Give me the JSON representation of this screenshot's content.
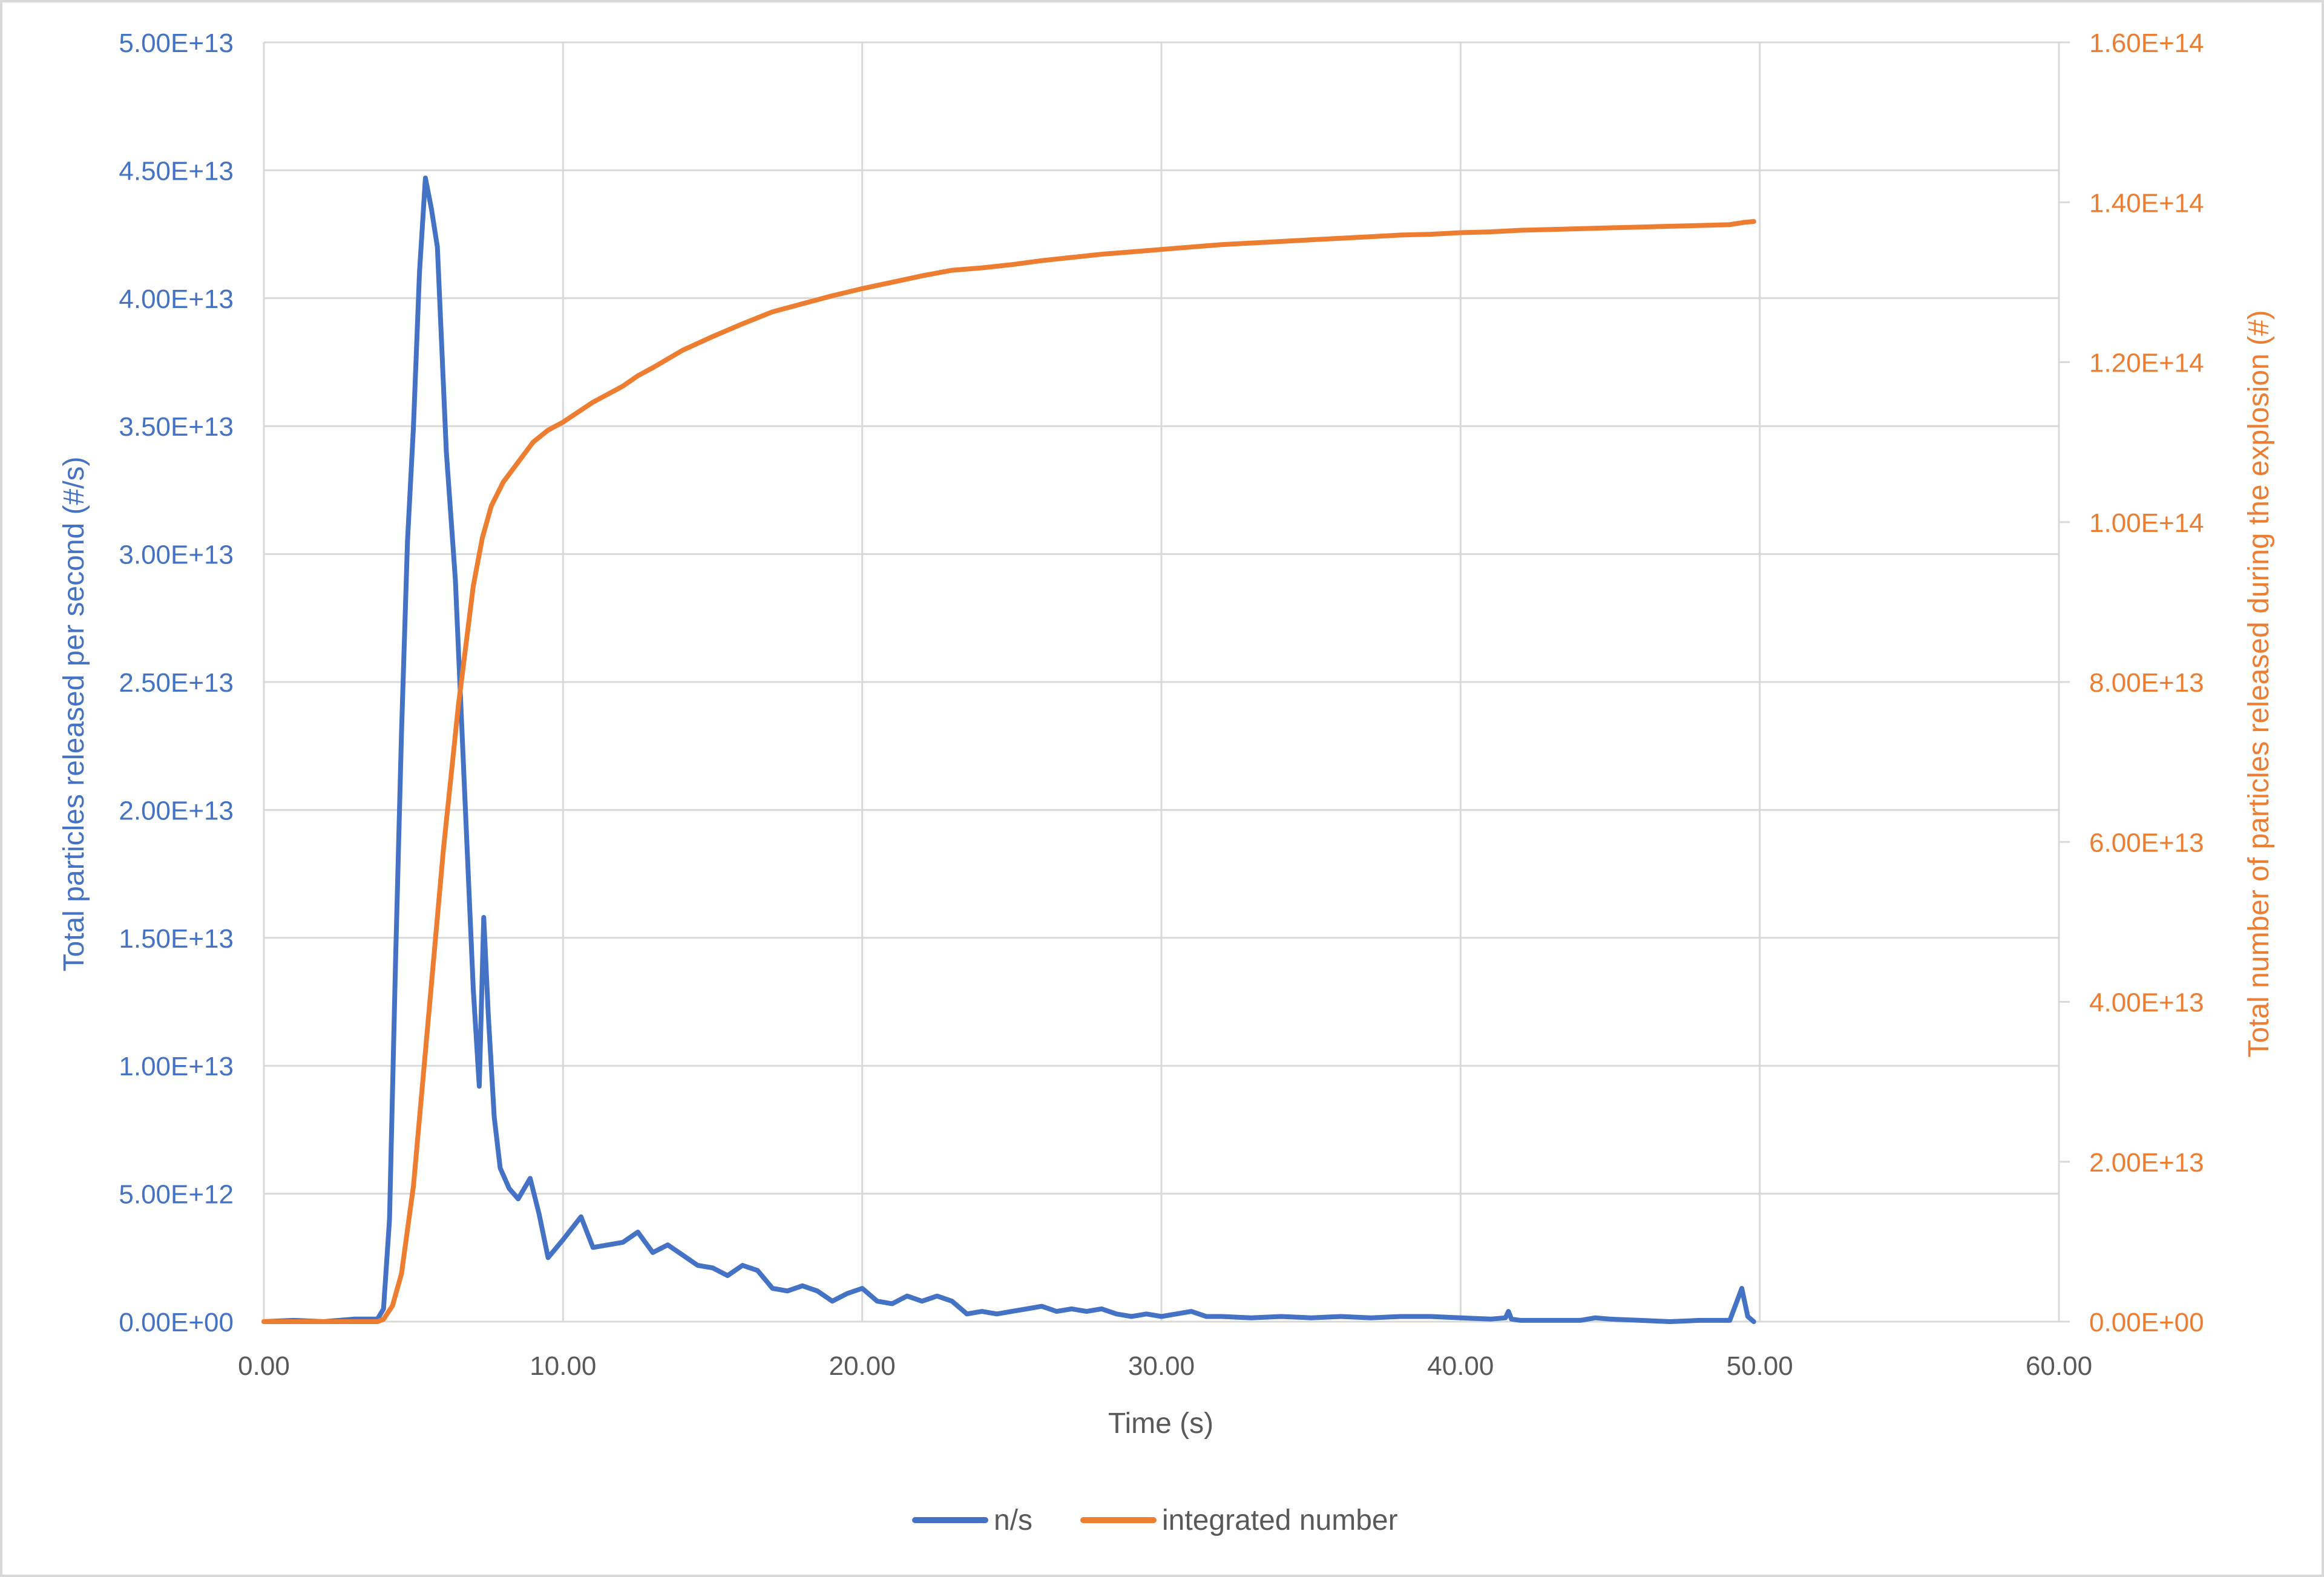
{
  "colors": {
    "left_series": "#4472C4",
    "right_series": "#ED7D31",
    "axis_text": "#595959",
    "grid": "#D9D9D9",
    "frame": "#D9D9D9"
  },
  "chart_data": {
    "type": "line",
    "title": "",
    "grid": true,
    "legend_position": "bottom",
    "x_axis": {
      "label": "Time (s)",
      "min": 0,
      "max": 60,
      "step": 10,
      "ticks": [
        "0.00",
        "10.00",
        "20.00",
        "30.00",
        "40.00",
        "50.00",
        "60.00"
      ]
    },
    "y_axis_left": {
      "label": "Total particles released per second (#/s)",
      "min": 0,
      "max": 50000000000000.0,
      "step": 5000000000000.0,
      "ticks": [
        "0.00E+00",
        "5.00E+12",
        "1.00E+13",
        "1.50E+13",
        "2.00E+13",
        "2.50E+13",
        "3.00E+13",
        "3.50E+13",
        "4.00E+13",
        "4.50E+13",
        "5.00E+13"
      ]
    },
    "y_axis_right": {
      "label": "Total number of particles released during the explosion (#)",
      "min": 0,
      "max": 160000000000000.0,
      "step": 20000000000000.0,
      "ticks": [
        "0.00E+00",
        "2.00E+13",
        "4.00E+13",
        "6.00E+13",
        "8.00E+13",
        "1.00E+14",
        "1.20E+14",
        "1.40E+14",
        "1.60E+14"
      ]
    },
    "series": [
      {
        "name": "n/s",
        "axis": "left",
        "points": [
          [
            0,
            0
          ],
          [
            1,
            50000000000.0
          ],
          [
            2,
            0
          ],
          [
            3,
            100000000000.0
          ],
          [
            3.8,
            100000000000.0
          ],
          [
            4.0,
            500000000000.0
          ],
          [
            4.2,
            4000000000000.0
          ],
          [
            4.4,
            14000000000000.0
          ],
          [
            4.6,
            23000000000000.0
          ],
          [
            4.8,
            30500000000000.0
          ],
          [
            5.0,
            35000000000000.0
          ],
          [
            5.2,
            41000000000000.0
          ],
          [
            5.4,
            44700000000000.0
          ],
          [
            5.6,
            43500000000000.0
          ],
          [
            5.8,
            42000000000000.0
          ],
          [
            6.1,
            34000000000000.0
          ],
          [
            6.4,
            29000000000000.0
          ],
          [
            6.7,
            21000000000000.0
          ],
          [
            7.0,
            13000000000000.0
          ],
          [
            7.2,
            9200000000000.0
          ],
          [
            7.35,
            15800000000000.0
          ],
          [
            7.5,
            12000000000000.0
          ],
          [
            7.7,
            8000000000000.0
          ],
          [
            7.9,
            6000000000000.0
          ],
          [
            8.2,
            5200000000000.0
          ],
          [
            8.5,
            4800000000000.0
          ],
          [
            8.9,
            5600000000000.0
          ],
          [
            9.2,
            4200000000000.0
          ],
          [
            9.5,
            2500000000000.0
          ],
          [
            10.0,
            3200000000000.0
          ],
          [
            10.6,
            4100000000000.0
          ],
          [
            11.0,
            2900000000000.0
          ],
          [
            11.5,
            3000000000000.0
          ],
          [
            12.0,
            3100000000000.0
          ],
          [
            12.5,
            3500000000000.0
          ],
          [
            13.0,
            2700000000000.0
          ],
          [
            13.5,
            3000000000000.0
          ],
          [
            14.0,
            2600000000000.0
          ],
          [
            14.5,
            2200000000000.0
          ],
          [
            15.0,
            2100000000000.0
          ],
          [
            15.5,
            1800000000000.0
          ],
          [
            16.0,
            2200000000000.0
          ],
          [
            16.5,
            2000000000000.0
          ],
          [
            17.0,
            1300000000000.0
          ],
          [
            17.5,
            1200000000000.0
          ],
          [
            18.0,
            1400000000000.0
          ],
          [
            18.5,
            1200000000000.0
          ],
          [
            19.0,
            800000000000.0
          ],
          [
            19.5,
            1100000000000.0
          ],
          [
            20.0,
            1300000000000.0
          ],
          [
            20.5,
            800000000000.0
          ],
          [
            21.0,
            700000000000.0
          ],
          [
            21.5,
            1000000000000.0
          ],
          [
            22.0,
            800000000000.0
          ],
          [
            22.5,
            1000000000000.0
          ],
          [
            23.0,
            800000000000.0
          ],
          [
            23.5,
            300000000000.0
          ],
          [
            24.0,
            400000000000.0
          ],
          [
            24.5,
            300000000000.0
          ],
          [
            25.0,
            400000000000.0
          ],
          [
            25.5,
            500000000000.0
          ],
          [
            26.0,
            600000000000.0
          ],
          [
            26.5,
            400000000000.0
          ],
          [
            27.0,
            500000000000.0
          ],
          [
            27.5,
            400000000000.0
          ],
          [
            28.0,
            500000000000.0
          ],
          [
            28.5,
            300000000000.0
          ],
          [
            29.0,
            200000000000.0
          ],
          [
            29.5,
            300000000000.0
          ],
          [
            30.0,
            200000000000.0
          ],
          [
            30.5,
            300000000000.0
          ],
          [
            31.0,
            400000000000.0
          ],
          [
            31.5,
            200000000000.0
          ],
          [
            32.0,
            200000000000.0
          ],
          [
            33.0,
            150000000000.0
          ],
          [
            34.0,
            200000000000.0
          ],
          [
            35.0,
            150000000000.0
          ],
          [
            36.0,
            200000000000.0
          ],
          [
            37.0,
            150000000000.0
          ],
          [
            38.0,
            200000000000.0
          ],
          [
            39.0,
            200000000000.0
          ],
          [
            40.0,
            150000000000.0
          ],
          [
            41.0,
            100000000000.0
          ],
          [
            41.5,
            150000000000.0
          ],
          [
            41.6,
            400000000000.0
          ],
          [
            41.7,
            100000000000.0
          ],
          [
            42.0,
            50000000000.0
          ],
          [
            43.0,
            50000000000.0
          ],
          [
            44.0,
            50000000000.0
          ],
          [
            44.5,
            150000000000.0
          ],
          [
            45.0,
            100000000000.0
          ],
          [
            46.0,
            50000000000.0
          ],
          [
            47.0,
            0
          ],
          [
            48.0,
            50000000000.0
          ],
          [
            49.0,
            50000000000.0
          ],
          [
            49.4,
            1300000000000.0
          ],
          [
            49.6,
            200000000000.0
          ],
          [
            49.8,
            0
          ]
        ]
      },
      {
        "name": "integrated number",
        "axis": "right",
        "points": [
          [
            0,
            0
          ],
          [
            3.8,
            0
          ],
          [
            4.0,
            300000000000.0
          ],
          [
            4.3,
            2000000000000.0
          ],
          [
            4.6,
            6000000000000.0
          ],
          [
            5.0,
            17000000000000.0
          ],
          [
            5.5,
            38000000000000.0
          ],
          [
            6.0,
            59000000000000.0
          ],
          [
            6.5,
            77000000000000.0
          ],
          [
            7.0,
            92000000000000.0
          ],
          [
            7.3,
            98000000000000.0
          ],
          [
            7.6,
            102000000000000.0
          ],
          [
            8.0,
            105000000000000.0
          ],
          [
            8.5,
            107500000000000.0
          ],
          [
            9.0,
            110000000000000.0
          ],
          [
            9.5,
            111500000000000.0
          ],
          [
            10.0,
            112500000000000.0
          ],
          [
            11.0,
            115000000000000.0
          ],
          [
            12.0,
            117000000000000.0
          ],
          [
            12.5,
            118300000000000.0
          ],
          [
            13.0,
            119300000000000.0
          ],
          [
            14.0,
            121500000000000.0
          ],
          [
            15.0,
            123200000000000.0
          ],
          [
            16.0,
            124800000000000.0
          ],
          [
            17.0,
            126300000000000.0
          ],
          [
            18.0,
            127300000000000.0
          ],
          [
            19.0,
            128300000000000.0
          ],
          [
            20.0,
            129200000000000.0
          ],
          [
            21.0,
            130000000000000.0
          ],
          [
            22.0,
            130800000000000.0
          ],
          [
            23.0,
            131500000000000.0
          ],
          [
            24.0,
            131800000000000.0
          ],
          [
            25.0,
            132200000000000.0
          ],
          [
            26.0,
            132700000000000.0
          ],
          [
            27.0,
            133100000000000.0
          ],
          [
            28.0,
            133500000000000.0
          ],
          [
            29.0,
            133800000000000.0
          ],
          [
            30.0,
            134100000000000.0
          ],
          [
            31.0,
            134400000000000.0
          ],
          [
            32.0,
            134700000000000.0
          ],
          [
            33.0,
            134900000000000.0
          ],
          [
            34.0,
            135100000000000.0
          ],
          [
            35.0,
            135300000000000.0
          ],
          [
            36.0,
            135500000000000.0
          ],
          [
            37.0,
            135700000000000.0
          ],
          [
            38.0,
            135900000000000.0
          ],
          [
            39.0,
            136000000000000.0
          ],
          [
            40.0,
            136200000000000.0
          ],
          [
            41.0,
            136300000000000.0
          ],
          [
            42.0,
            136500000000000.0
          ],
          [
            43.0,
            136600000000000.0
          ],
          [
            44.0,
            136700000000000.0
          ],
          [
            45.0,
            136800000000000.0
          ],
          [
            46.0,
            136900000000000.0
          ],
          [
            47.0,
            137000000000000.0
          ],
          [
            48.0,
            137100000000000.0
          ],
          [
            49.0,
            137200000000000.0
          ],
          [
            49.5,
            137500000000000.0
          ],
          [
            49.8,
            137600000000000.0
          ]
        ]
      }
    ]
  }
}
